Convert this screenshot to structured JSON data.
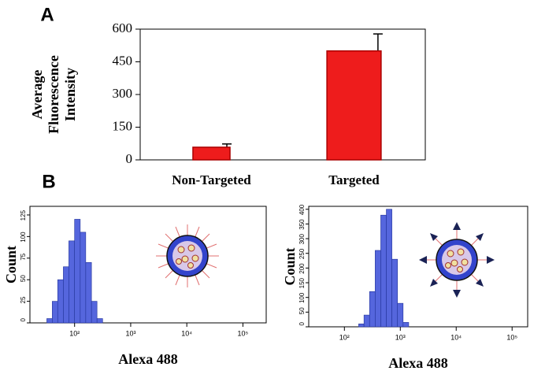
{
  "chart_data": [
    {
      "type": "bar",
      "title": "A",
      "ylabel": [
        "Average",
        "Fluorescence",
        "Intensity"
      ],
      "categories": [
        "Non-Targeted",
        "Targeted"
      ],
      "values": [
        58,
        500
      ],
      "errors": [
        15,
        78
      ],
      "color": "#ee1c1c",
      "ylim": [
        0,
        600
      ],
      "yticks": [
        0,
        150,
        300,
        450,
        600
      ]
    },
    {
      "type": "histogram",
      "title": "B",
      "xlabel": "Alexa 488",
      "ylabel": "Count",
      "xscale": "log",
      "bins": [
        32,
        40,
        50,
        63,
        79,
        100,
        126,
        158,
        200,
        251,
        316
      ],
      "counts": [
        5,
        25,
        50,
        65,
        95,
        120,
        105,
        70,
        25,
        5
      ],
      "color": "#5566dd",
      "xlim": [
        16,
        260000
      ],
      "ylim": [
        0,
        135
      ],
      "xticks": [
        {
          "value": 100,
          "label": "10²"
        },
        {
          "value": 1000,
          "label": "10³"
        },
        {
          "value": 10000,
          "label": "10⁴"
        },
        {
          "value": 100000,
          "label": "10⁵"
        }
      ],
      "yticks": [
        0,
        25,
        50,
        75,
        100,
        125
      ]
    },
    {
      "type": "histogram",
      "xlabel": "Alexa 488",
      "ylabel": "Count",
      "xscale": "log",
      "bins": [
        180,
        224,
        282,
        355,
        447,
        562,
        708,
        891,
        1122,
        1413
      ],
      "counts": [
        10,
        40,
        120,
        260,
        380,
        400,
        230,
        80,
        15
      ],
      "color": "#5566dd",
      "xlim": [
        23,
        190000
      ],
      "ylim": [
        0,
        410
      ],
      "xticks": [
        {
          "value": 100,
          "label": "10²"
        },
        {
          "value": 1000,
          "label": "10³"
        },
        {
          "value": 10000,
          "label": "10⁴"
        },
        {
          "value": 100000,
          "label": "10⁵"
        }
      ],
      "yticks": [
        0,
        50,
        100,
        150,
        200,
        250,
        300,
        350,
        400
      ]
    }
  ]
}
